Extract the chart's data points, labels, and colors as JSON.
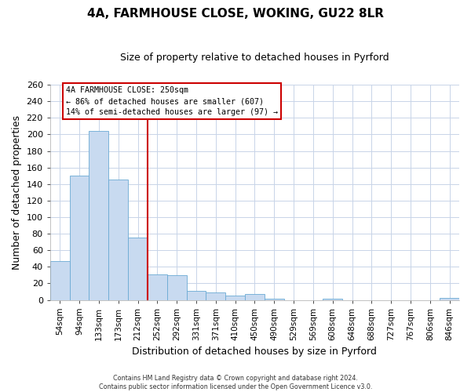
{
  "title": "4A, FARMHOUSE CLOSE, WOKING, GU22 8LR",
  "subtitle": "Size of property relative to detached houses in Pyrford",
  "xlabel": "Distribution of detached houses by size in Pyrford",
  "ylabel": "Number of detached properties",
  "bar_labels": [
    "54sqm",
    "94sqm",
    "133sqm",
    "173sqm",
    "212sqm",
    "252sqm",
    "292sqm",
    "331sqm",
    "371sqm",
    "410sqm",
    "450sqm",
    "490sqm",
    "529sqm",
    "569sqm",
    "608sqm",
    "648sqm",
    "688sqm",
    "727sqm",
    "767sqm",
    "806sqm",
    "846sqm"
  ],
  "bar_values": [
    47,
    150,
    204,
    145,
    75,
    31,
    30,
    11,
    9,
    5,
    7,
    1,
    0,
    0,
    1,
    0,
    0,
    0,
    0,
    0,
    2
  ],
  "bar_color": "#c8daf0",
  "bar_edge_color": "#6aaad4",
  "vline_x_idx": 5,
  "vline_color": "#cc0000",
  "annotation_box_color": "#cc0000",
  "annotation_line1": "4A FARMHOUSE CLOSE: 250sqm",
  "annotation_line2": "← 86% of detached houses are smaller (607)",
  "annotation_line3": "14% of semi-detached houses are larger (97) →",
  "ylim": [
    0,
    260
  ],
  "yticks": [
    0,
    20,
    40,
    60,
    80,
    100,
    120,
    140,
    160,
    180,
    200,
    220,
    240,
    260
  ],
  "footer1": "Contains HM Land Registry data © Crown copyright and database right 2024.",
  "footer2": "Contains public sector information licensed under the Open Government Licence v3.0.",
  "background_color": "#ffffff",
  "grid_color": "#c8d4e8"
}
